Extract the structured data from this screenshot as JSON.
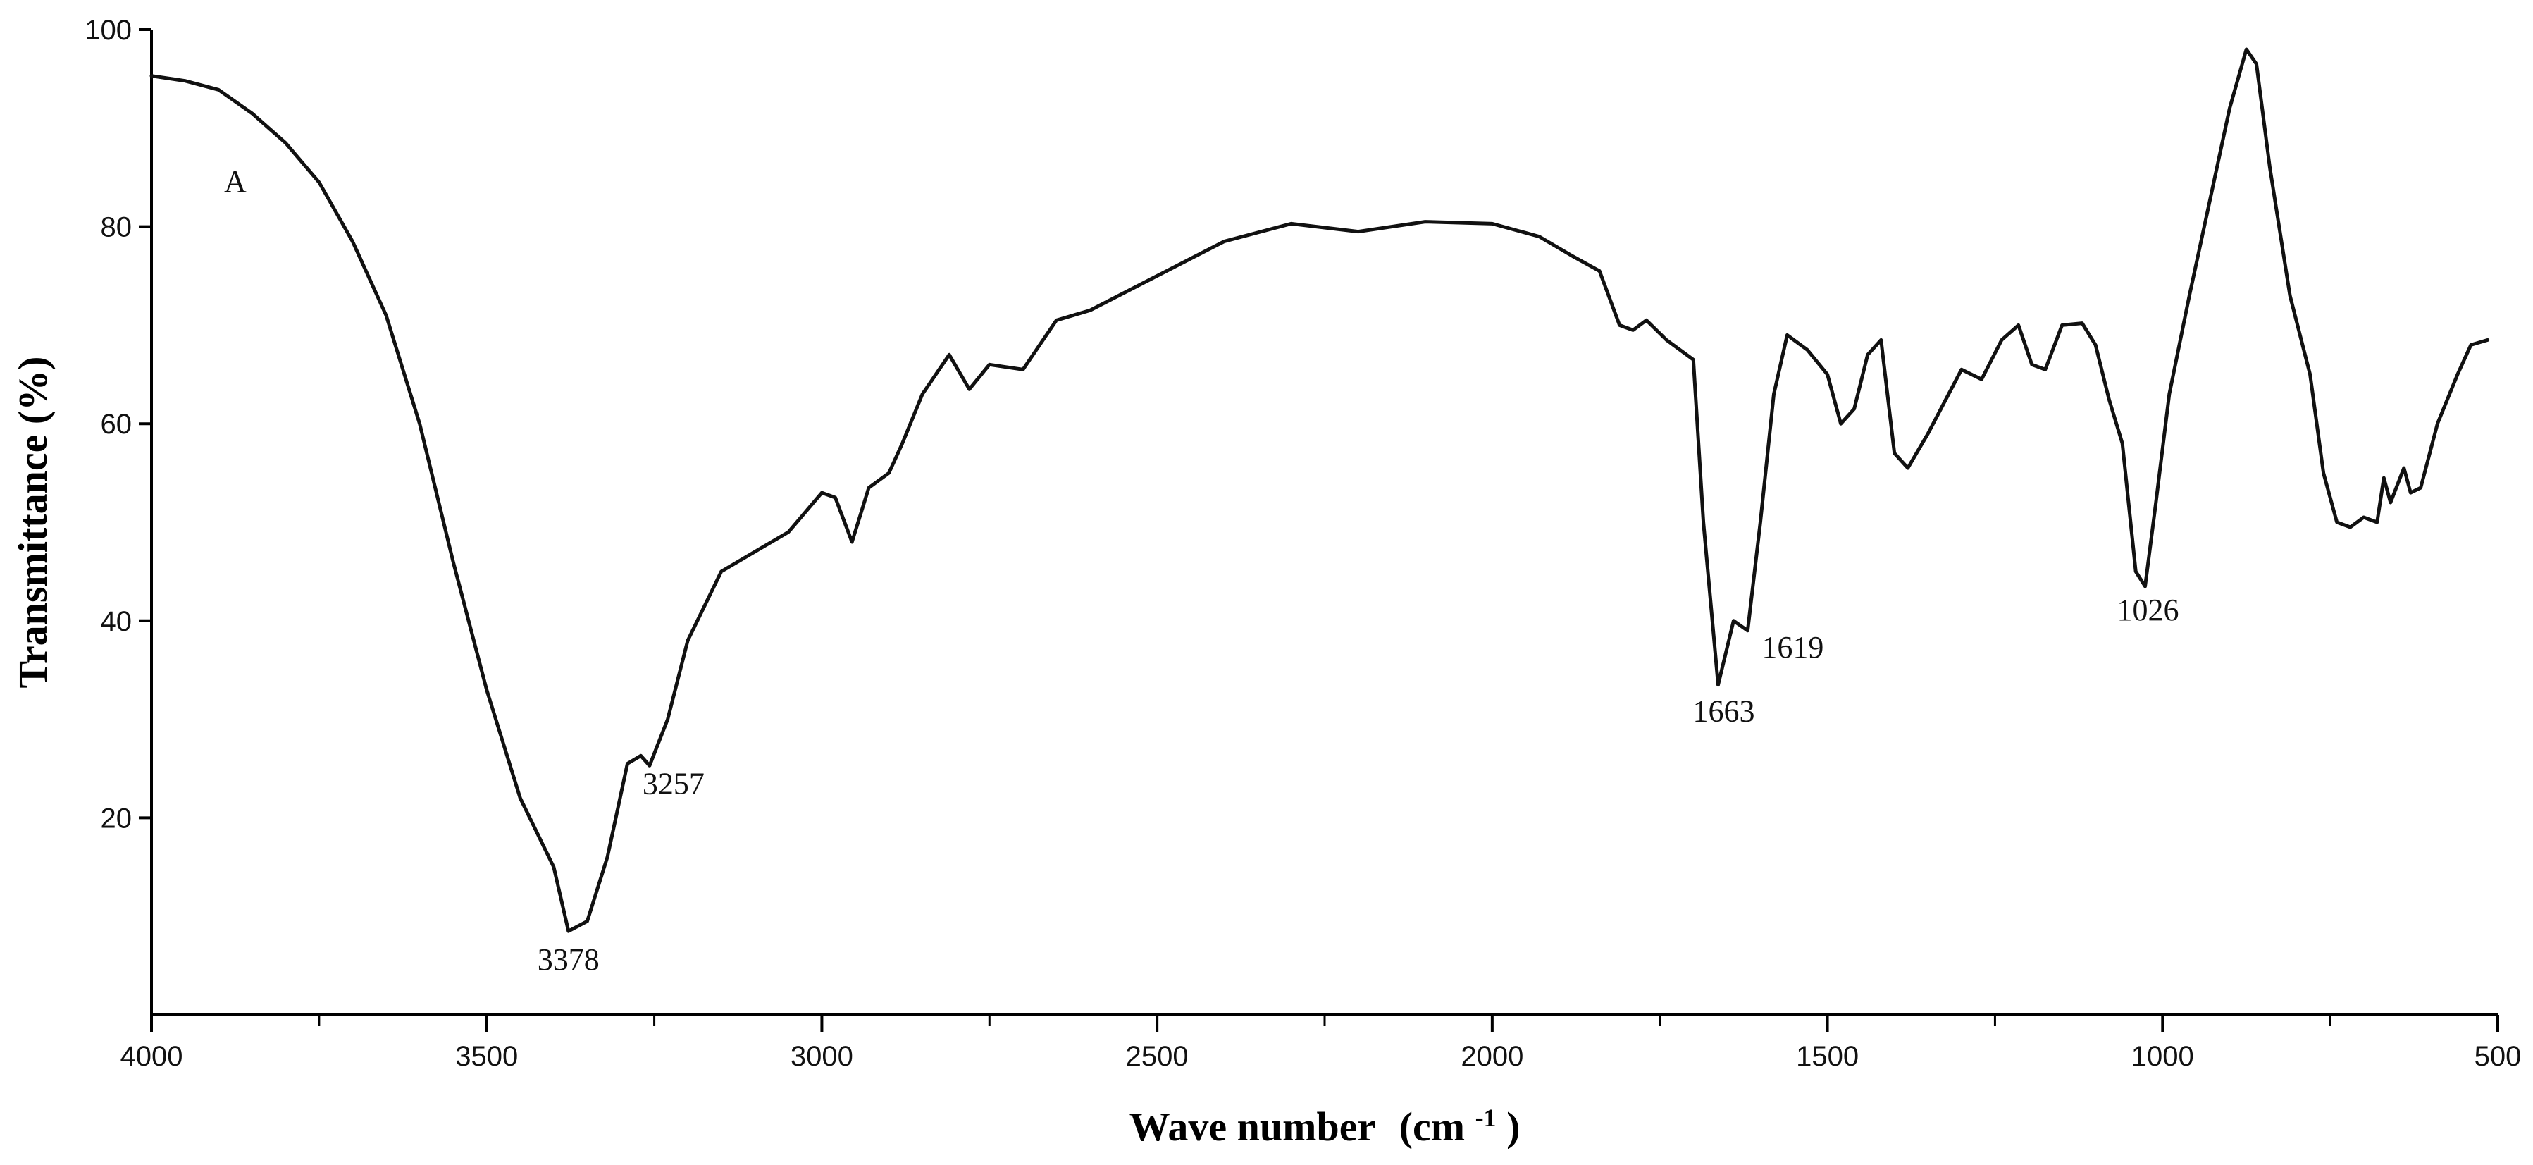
{
  "chart_data": {
    "type": "line",
    "title": "",
    "xlabel_main": "Wave number",
    "xlabel_unit_prefix": "(cm",
    "xlabel_unit_sup": "-1",
    "xlabel_unit_suffix": ")",
    "ylabel": "Transmittance  (%)",
    "xlim": [
      4000,
      500
    ],
    "ylim": [
      0,
      100
    ],
    "x_reversed": true,
    "grid": false,
    "x_ticks": [
      "4000",
      "3500",
      "3000",
      "2500",
      "2000",
      "1500",
      "1000",
      "500"
    ],
    "y_ticks": [
      "20",
      "40",
      "60",
      "80",
      "100"
    ],
    "panel_label": "A",
    "series": [
      {
        "color": "#111111",
        "points": [
          [
            4000,
            95.3
          ],
          [
            3950,
            94.8
          ],
          [
            3900,
            93.9
          ],
          [
            3850,
            91.5
          ],
          [
            3800,
            88.5
          ],
          [
            3750,
            84.5
          ],
          [
            3700,
            78.5
          ],
          [
            3650,
            71.0
          ],
          [
            3600,
            60.0
          ],
          [
            3550,
            46.0
          ],
          [
            3500,
            33.0
          ],
          [
            3450,
            22.0
          ],
          [
            3400,
            15.0
          ],
          [
            3378,
            8.5
          ],
          [
            3350,
            9.5
          ],
          [
            3320,
            16.0
          ],
          [
            3290,
            25.5
          ],
          [
            3270,
            26.3
          ],
          [
            3257,
            25.3
          ],
          [
            3230,
            30.0
          ],
          [
            3200,
            38.0
          ],
          [
            3150,
            45.0
          ],
          [
            3100,
            47.0
          ],
          [
            3050,
            49.0
          ],
          [
            3000,
            53.0
          ],
          [
            2980,
            52.5
          ],
          [
            2955,
            48.0
          ],
          [
            2930,
            53.5
          ],
          [
            2900,
            55.0
          ],
          [
            2880,
            58.0
          ],
          [
            2850,
            63.0
          ],
          [
            2810,
            67.0
          ],
          [
            2780,
            63.5
          ],
          [
            2750,
            66.0
          ],
          [
            2700,
            65.5
          ],
          [
            2650,
            70.5
          ],
          [
            2600,
            71.5
          ],
          [
            2500,
            75.0
          ],
          [
            2400,
            78.5
          ],
          [
            2300,
            80.3
          ],
          [
            2200,
            79.5
          ],
          [
            2100,
            80.5
          ],
          [
            2000,
            80.3
          ],
          [
            1930,
            79.0
          ],
          [
            1880,
            77.0
          ],
          [
            1840,
            75.5
          ],
          [
            1810,
            70.0
          ],
          [
            1790,
            69.5
          ],
          [
            1770,
            70.5
          ],
          [
            1740,
            68.5
          ],
          [
            1700,
            66.5
          ],
          [
            1685,
            50.0
          ],
          [
            1663,
            33.5
          ],
          [
            1640,
            40.0
          ],
          [
            1619,
            39.0
          ],
          [
            1600,
            50.0
          ],
          [
            1580,
            63.0
          ],
          [
            1560,
            69.0
          ],
          [
            1530,
            67.5
          ],
          [
            1500,
            65.0
          ],
          [
            1480,
            60.0
          ],
          [
            1460,
            61.5
          ],
          [
            1440,
            67.0
          ],
          [
            1420,
            68.5
          ],
          [
            1400,
            57.0
          ],
          [
            1380,
            55.5
          ],
          [
            1350,
            59.0
          ],
          [
            1300,
            65.5
          ],
          [
            1270,
            64.5
          ],
          [
            1240,
            68.5
          ],
          [
            1215,
            70.0
          ],
          [
            1195,
            66.0
          ],
          [
            1175,
            65.5
          ],
          [
            1150,
            70.0
          ],
          [
            1120,
            70.2
          ],
          [
            1100,
            68.0
          ],
          [
            1080,
            62.5
          ],
          [
            1060,
            58.0
          ],
          [
            1040,
            45.0
          ],
          [
            1026,
            43.5
          ],
          [
            1010,
            52.0
          ],
          [
            990,
            63.0
          ],
          [
            960,
            73.0
          ],
          [
            930,
            82.5
          ],
          [
            900,
            92.0
          ],
          [
            875,
            98.0
          ],
          [
            860,
            96.5
          ],
          [
            840,
            86.0
          ],
          [
            810,
            73.0
          ],
          [
            780,
            65.0
          ],
          [
            760,
            55.0
          ],
          [
            740,
            50.0
          ],
          [
            720,
            49.5
          ],
          [
            700,
            50.5
          ],
          [
            680,
            50.0
          ],
          [
            670,
            54.5
          ],
          [
            660,
            52.0
          ],
          [
            640,
            55.5
          ],
          [
            630,
            53.0
          ],
          [
            615,
            53.5
          ],
          [
            590,
            60.0
          ],
          [
            560,
            65.0
          ],
          [
            540,
            68.0
          ],
          [
            515,
            68.5
          ]
        ]
      }
    ],
    "annotations": [
      {
        "text": "3378",
        "x": 3378,
        "y": 8.5
      },
      {
        "text": "3257",
        "x": 3257,
        "y": 25.3
      },
      {
        "text": "1663",
        "x": 1663,
        "y": 33.5
      },
      {
        "text": "1619",
        "x": 1619,
        "y": 39.0
      },
      {
        "text": "1026",
        "x": 1026,
        "y": 43.5
      }
    ]
  }
}
